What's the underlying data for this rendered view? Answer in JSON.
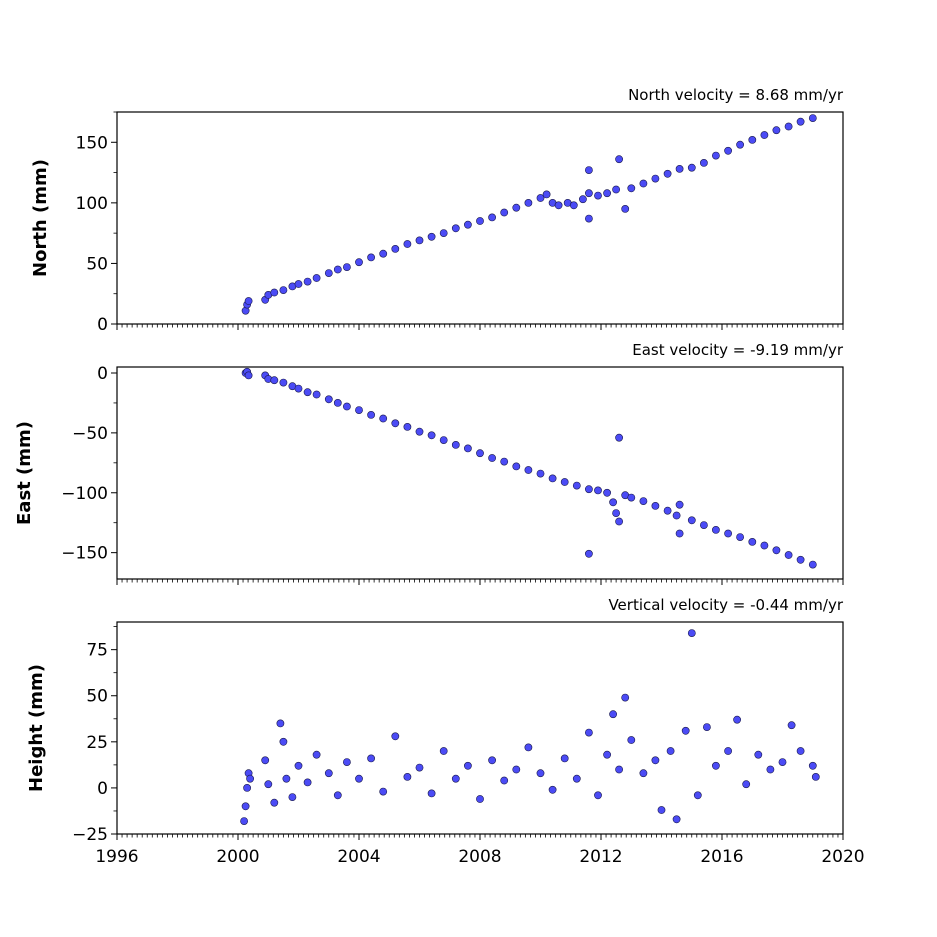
{
  "colors": {
    "marker_fill": "#4b4bf5",
    "marker_edge": "#1a1a4d",
    "axis": "#000000",
    "background": "#ffffff"
  },
  "x_axis": {
    "range": [
      1996,
      2020
    ],
    "major_ticks": [
      1996,
      2000,
      2004,
      2008,
      2012,
      2016,
      2020
    ],
    "tick_labels": [
      "1996",
      "2000",
      "2004",
      "2008",
      "2012",
      "2016",
      "2020"
    ],
    "minor_tick_step_months": 2,
    "tick_labels_shown_on": "bottom panel only"
  },
  "chart_data": [
    {
      "type": "scatter",
      "ylabel": "North (mm)",
      "annotation": "North velocity = 8.68 mm/yr",
      "ylim": [
        0,
        175
      ],
      "y_ticks": [
        0,
        50,
        100,
        150
      ],
      "y_tick_labels": [
        "0",
        "50",
        "100",
        "150"
      ],
      "xlim": [
        1996,
        2020
      ],
      "series": [
        {
          "points": [
            [
              2000.25,
              11
            ],
            [
              2000.3,
              16
            ],
            [
              2000.35,
              19
            ],
            [
              2000.9,
              20
            ],
            [
              2001.0,
              24
            ],
            [
              2001.2,
              26
            ],
            [
              2001.5,
              28
            ],
            [
              2001.8,
              31
            ],
            [
              2002.0,
              33
            ],
            [
              2002.3,
              35
            ],
            [
              2002.6,
              38
            ],
            [
              2003.0,
              42
            ],
            [
              2003.3,
              45
            ],
            [
              2003.6,
              47
            ],
            [
              2004.0,
              51
            ],
            [
              2004.4,
              55
            ],
            [
              2004.8,
              58
            ],
            [
              2005.2,
              62
            ],
            [
              2005.6,
              66
            ],
            [
              2006.0,
              69
            ],
            [
              2006.4,
              72
            ],
            [
              2006.8,
              75
            ],
            [
              2007.2,
              79
            ],
            [
              2007.6,
              82
            ],
            [
              2008.0,
              85
            ],
            [
              2008.4,
              88
            ],
            [
              2008.8,
              92
            ],
            [
              2009.2,
              96
            ],
            [
              2009.6,
              100
            ],
            [
              2010.0,
              104
            ],
            [
              2010.2,
              107
            ],
            [
              2010.4,
              100
            ],
            [
              2010.6,
              98
            ],
            [
              2010.9,
              100
            ],
            [
              2011.1,
              98
            ],
            [
              2011.4,
              103
            ],
            [
              2011.6,
              108
            ],
            [
              2011.6,
              127
            ],
            [
              2011.6,
              87
            ],
            [
              2011.9,
              106
            ],
            [
              2012.2,
              108
            ],
            [
              2012.5,
              111
            ],
            [
              2012.6,
              136
            ],
            [
              2012.8,
              95
            ],
            [
              2013.0,
              112
            ],
            [
              2013.4,
              116
            ],
            [
              2013.8,
              120
            ],
            [
              2014.2,
              124
            ],
            [
              2014.6,
              128
            ],
            [
              2015.0,
              129
            ],
            [
              2015.4,
              133
            ],
            [
              2015.8,
              139
            ],
            [
              2016.2,
              143
            ],
            [
              2016.6,
              148
            ],
            [
              2017.0,
              152
            ],
            [
              2017.4,
              156
            ],
            [
              2017.8,
              160
            ],
            [
              2018.2,
              163
            ],
            [
              2018.6,
              167
            ],
            [
              2019.0,
              170
            ]
          ]
        }
      ]
    },
    {
      "type": "scatter",
      "ylabel": "East (mm)",
      "annotation": "East velocity = -9.19 mm/yr",
      "ylim": [
        -172,
        5
      ],
      "y_ticks": [
        0,
        -50,
        -100,
        -150
      ],
      "y_tick_labels": [
        "0",
        "−50",
        "−100",
        "−150"
      ],
      "xlim": [
        1996,
        2020
      ],
      "series": [
        {
          "points": [
            [
              2000.25,
              0
            ],
            [
              2000.3,
              1
            ],
            [
              2000.35,
              -2
            ],
            [
              2000.9,
              -2
            ],
            [
              2001.0,
              -5
            ],
            [
              2001.2,
              -6
            ],
            [
              2001.5,
              -8
            ],
            [
              2001.8,
              -11
            ],
            [
              2002.0,
              -13
            ],
            [
              2002.3,
              -16
            ],
            [
              2002.6,
              -18
            ],
            [
              2003.0,
              -22
            ],
            [
              2003.3,
              -25
            ],
            [
              2003.6,
              -28
            ],
            [
              2004.0,
              -31
            ],
            [
              2004.4,
              -35
            ],
            [
              2004.8,
              -38
            ],
            [
              2005.2,
              -42
            ],
            [
              2005.6,
              -45
            ],
            [
              2006.0,
              -49
            ],
            [
              2006.4,
              -52
            ],
            [
              2006.8,
              -56
            ],
            [
              2007.2,
              -60
            ],
            [
              2007.6,
              -63
            ],
            [
              2008.0,
              -67
            ],
            [
              2008.4,
              -71
            ],
            [
              2008.8,
              -74
            ],
            [
              2009.2,
              -78
            ],
            [
              2009.6,
              -81
            ],
            [
              2010.0,
              -84
            ],
            [
              2010.4,
              -88
            ],
            [
              2010.8,
              -91
            ],
            [
              2011.2,
              -94
            ],
            [
              2011.6,
              -97
            ],
            [
              2011.6,
              -151
            ],
            [
              2011.9,
              -98
            ],
            [
              2012.2,
              -100
            ],
            [
              2012.4,
              -108
            ],
            [
              2012.5,
              -117
            ],
            [
              2012.6,
              -54
            ],
            [
              2012.6,
              -124
            ],
            [
              2012.8,
              -102
            ],
            [
              2013.0,
              -104
            ],
            [
              2013.4,
              -107
            ],
            [
              2013.8,
              -111
            ],
            [
              2014.2,
              -115
            ],
            [
              2014.5,
              -119
            ],
            [
              2014.6,
              -110
            ],
            [
              2014.6,
              -134
            ],
            [
              2015.0,
              -123
            ],
            [
              2015.4,
              -127
            ],
            [
              2015.8,
              -131
            ],
            [
              2016.2,
              -134
            ],
            [
              2016.6,
              -137
            ],
            [
              2017.0,
              -141
            ],
            [
              2017.4,
              -144
            ],
            [
              2017.8,
              -148
            ],
            [
              2018.2,
              -152
            ],
            [
              2018.6,
              -156
            ],
            [
              2019.0,
              -160
            ]
          ]
        }
      ]
    },
    {
      "type": "scatter",
      "ylabel": "Height (mm)",
      "annotation": "Vertical velocity = -0.44 mm/yr",
      "ylim": [
        -25,
        90
      ],
      "y_ticks": [
        -25,
        0,
        25,
        50,
        75
      ],
      "y_tick_labels": [
        "−25",
        "0",
        "25",
        "50",
        "75"
      ],
      "xlim": [
        1996,
        2020
      ],
      "series": [
        {
          "points": [
            [
              2000.2,
              -18
            ],
            [
              2000.25,
              -10
            ],
            [
              2000.3,
              0
            ],
            [
              2000.35,
              8
            ],
            [
              2000.4,
              5
            ],
            [
              2000.9,
              15
            ],
            [
              2001.0,
              2
            ],
            [
              2001.2,
              -8
            ],
            [
              2001.4,
              35
            ],
            [
              2001.5,
              25
            ],
            [
              2001.6,
              5
            ],
            [
              2001.8,
              -5
            ],
            [
              2002.0,
              12
            ],
            [
              2002.3,
              3
            ],
            [
              2002.6,
              18
            ],
            [
              2003.0,
              8
            ],
            [
              2003.3,
              -4
            ],
            [
              2003.6,
              14
            ],
            [
              2004.0,
              5
            ],
            [
              2004.4,
              16
            ],
            [
              2004.8,
              -2
            ],
            [
              2005.2,
              28
            ],
            [
              2005.6,
              6
            ],
            [
              2006.0,
              11
            ],
            [
              2006.4,
              -3
            ],
            [
              2006.8,
              20
            ],
            [
              2007.2,
              5
            ],
            [
              2007.6,
              12
            ],
            [
              2008.0,
              -6
            ],
            [
              2008.4,
              15
            ],
            [
              2008.8,
              4
            ],
            [
              2009.2,
              10
            ],
            [
              2009.6,
              22
            ],
            [
              2010.0,
              8
            ],
            [
              2010.4,
              -1
            ],
            [
              2010.8,
              16
            ],
            [
              2011.2,
              5
            ],
            [
              2011.6,
              30
            ],
            [
              2011.9,
              -4
            ],
            [
              2012.2,
              18
            ],
            [
              2012.4,
              40
            ],
            [
              2012.6,
              10
            ],
            [
              2012.8,
              49
            ],
            [
              2013.0,
              26
            ],
            [
              2013.4,
              8
            ],
            [
              2013.8,
              15
            ],
            [
              2014.0,
              -12
            ],
            [
              2014.3,
              20
            ],
            [
              2014.5,
              -17
            ],
            [
              2014.8,
              31
            ],
            [
              2015.0,
              84
            ],
            [
              2015.2,
              -4
            ],
            [
              2015.5,
              33
            ],
            [
              2015.8,
              12
            ],
            [
              2016.2,
              20
            ],
            [
              2016.5,
              37
            ],
            [
              2016.8,
              2
            ],
            [
              2017.2,
              18
            ],
            [
              2017.6,
              10
            ],
            [
              2018.0,
              14
            ],
            [
              2018.3,
              34
            ],
            [
              2018.6,
              20
            ],
            [
              2019.0,
              12
            ],
            [
              2019.1,
              6
            ]
          ]
        }
      ]
    }
  ]
}
